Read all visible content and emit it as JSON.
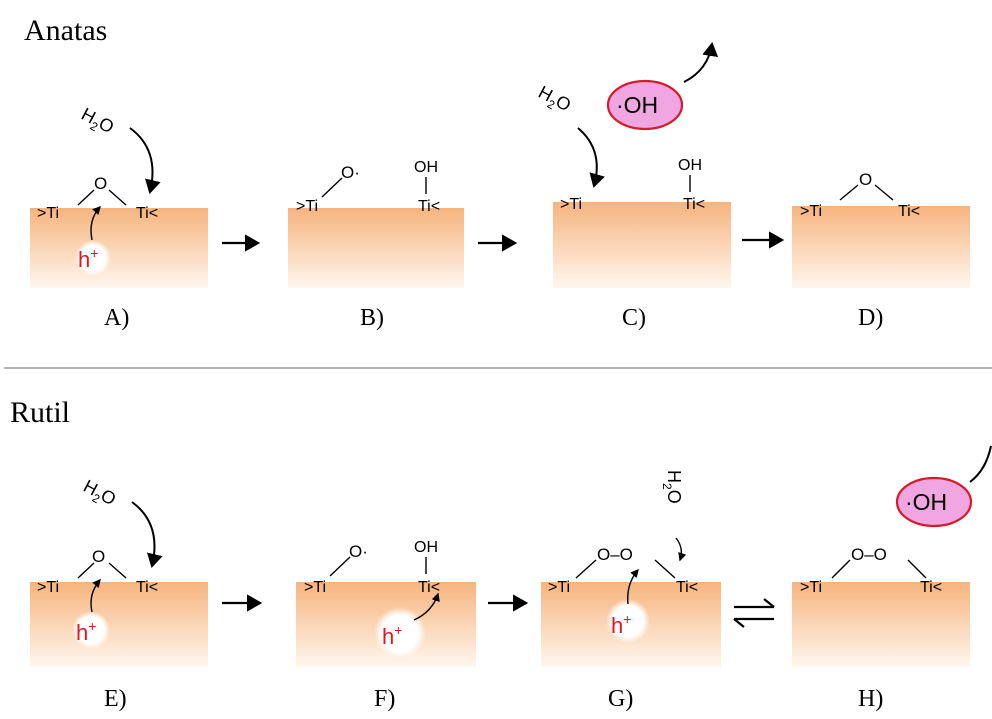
{
  "sections": [
    {
      "title": "Anatas"
    },
    {
      "title": "Rutil"
    }
  ],
  "panels": [
    {
      "label": "A)",
      "ti_left": ">Ti",
      "ti_right": "Ti<",
      "bridge": "O",
      "water": "H2O",
      "hole": "h+"
    },
    {
      "label": "B)",
      "ti_left": ">Ti",
      "ti_right": "Ti<",
      "radical_o": "O·",
      "hydroxyl": "OH"
    },
    {
      "label": "C)",
      "ti_left": ">Ti",
      "ti_right": "Ti<",
      "water": "H2O",
      "hydroxyl": "OH",
      "product": "·OH"
    },
    {
      "label": "D)",
      "ti_left": ">Ti",
      "ti_right": "Ti<",
      "bridge": "O"
    },
    {
      "label": "E)",
      "ti_left": ">Ti",
      "ti_right": "Ti<",
      "bridge": "O",
      "water": "H2O",
      "hole": "h+"
    },
    {
      "label": "F)",
      "ti_left": ">Ti",
      "ti_right": "Ti<",
      "radical_o": "O·",
      "hydroxyl": "OH",
      "hole": "h+"
    },
    {
      "label": "G)",
      "ti_left": ">Ti",
      "ti_right": "Ti<",
      "peroxo": "O–O",
      "water": "H2O",
      "hole": "h+"
    },
    {
      "label": "H)",
      "ti_left": ">Ti",
      "ti_right": "Ti<",
      "peroxo": "O–O",
      "product": "·OH"
    }
  ],
  "colors": {
    "surface_top": "#f6b47e",
    "surface_bottom": "#fff6ee",
    "hole_text": "#e0191e",
    "radical_fill": "#f0a6e0",
    "radical_stroke": "#d8192a",
    "divider": "#9a9a9a"
  }
}
